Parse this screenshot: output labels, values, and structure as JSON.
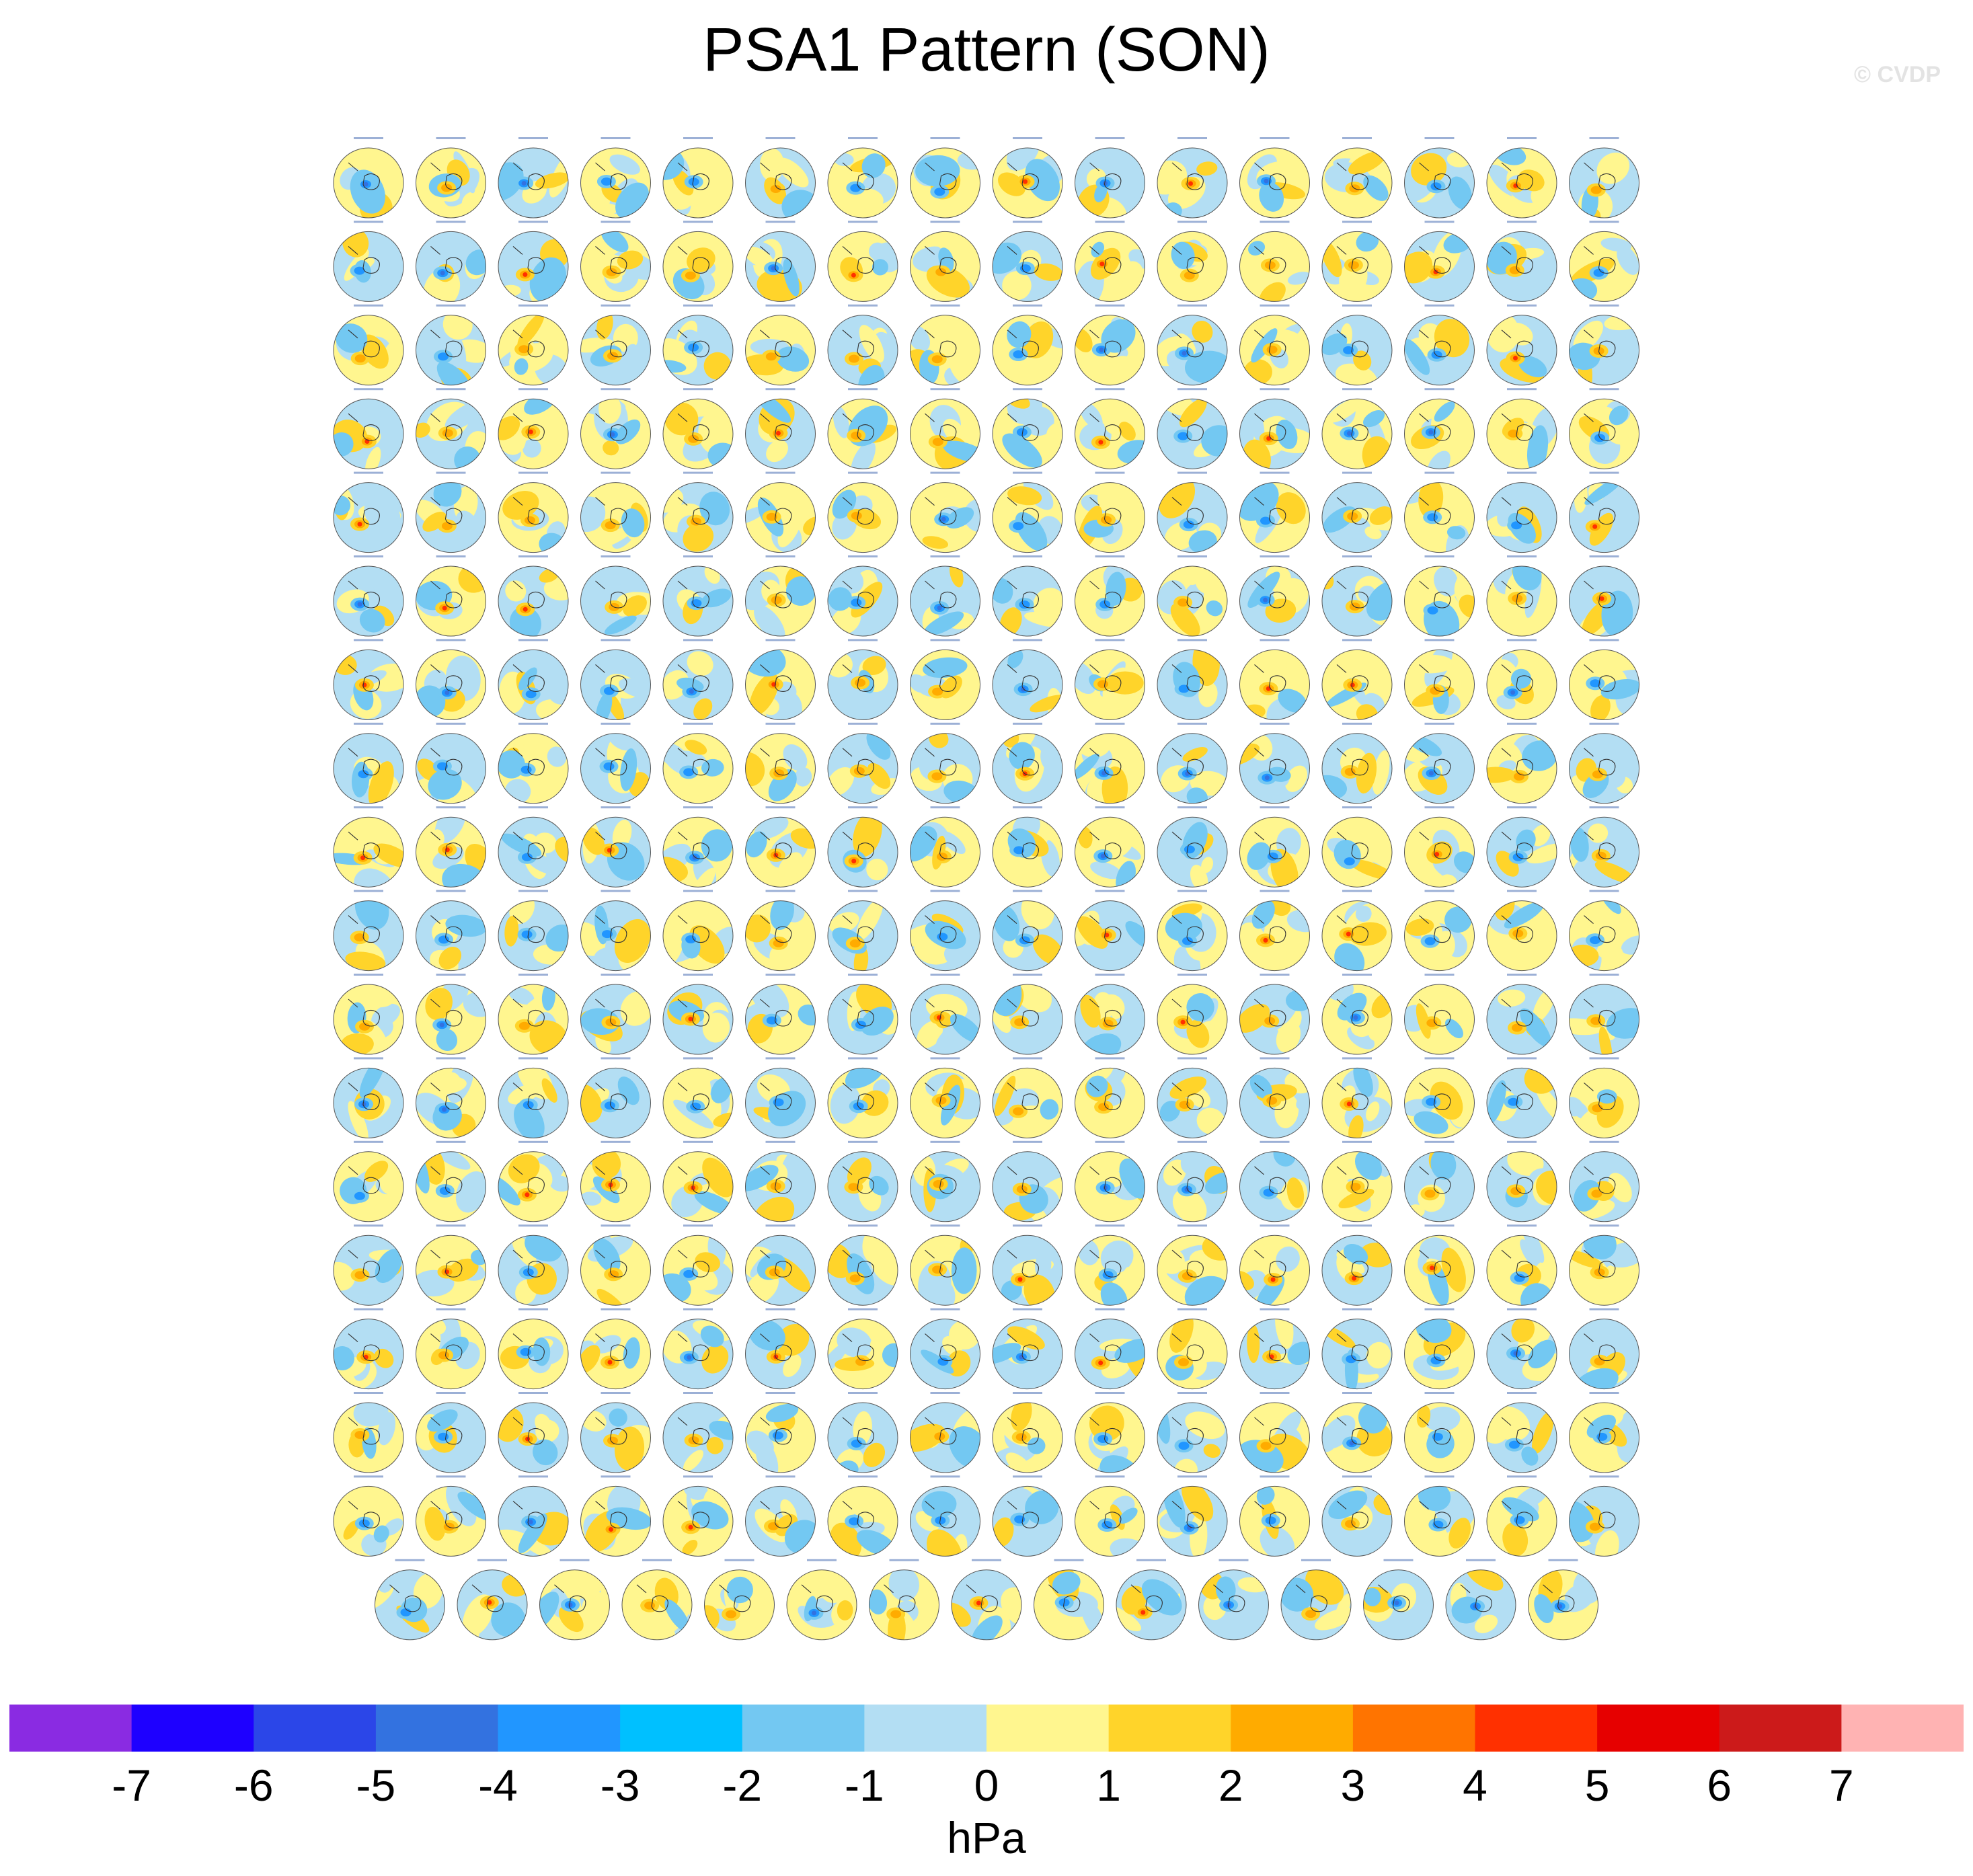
{
  "title": "PSA1 Pattern (SON)",
  "watermark": "© CVDP",
  "colorbar": {
    "units": "hPa",
    "ticks": [
      "-7",
      "-6",
      "-5",
      "-4",
      "-3",
      "-2",
      "-1",
      "0",
      "1",
      "2",
      "3",
      "4",
      "5",
      "6",
      "7"
    ],
    "colors": [
      "#8a2be2",
      "#1e00ff",
      "#2b46e8",
      "#3372e0",
      "#2196ff",
      "#00c0ff",
      "#73c8f2",
      "#b3def3",
      "#fff68f",
      "#ffd42a",
      "#ffab00",
      "#ff7400",
      "#ff3000",
      "#e60000",
      "#cc1a1a",
      "#ffb3b3"
    ]
  },
  "chart_data": {
    "type": "heatmap",
    "title": "PSA1 Pattern (SON)",
    "description_of_grid": "small multiples of Southern Hemisphere polar-stereographic maps",
    "panel_rows": 18,
    "panels_per_row": [
      16,
      16,
      16,
      16,
      16,
      16,
      16,
      16,
      16,
      16,
      16,
      16,
      16,
      16,
      16,
      16,
      16,
      15
    ],
    "value_range": [
      -7,
      7
    ],
    "units": "hPa",
    "levels": [
      -7,
      -6,
      -5,
      -4,
      -3,
      -2,
      -1,
      0,
      1,
      2,
      3,
      4,
      5,
      6,
      7
    ]
  }
}
